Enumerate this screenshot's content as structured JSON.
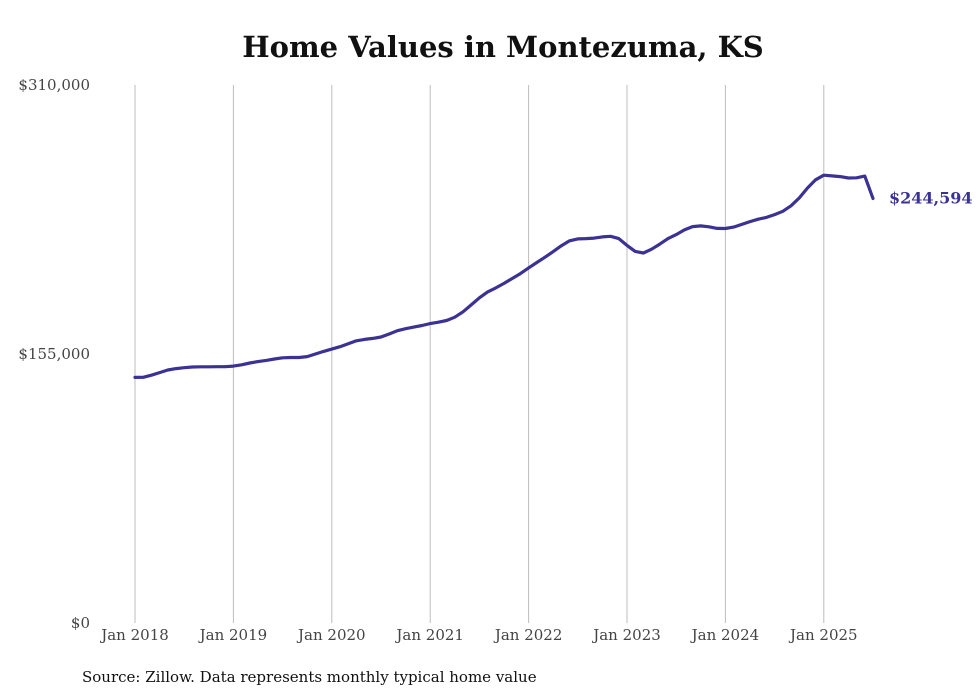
{
  "chart_data": {
    "type": "line",
    "title": "Home Values in Montezuma, KS",
    "xlabel": "",
    "ylabel": "",
    "source": "Source: Zillow. Data represents monthly typical home value",
    "ylim": [
      0,
      310000
    ],
    "y_ticks": [
      {
        "value": 0,
        "label": "$0"
      },
      {
        "value": 155000,
        "label": "$155,000"
      },
      {
        "value": 310000,
        "label": "$310,000"
      }
    ],
    "x_ticks": [
      {
        "value": 2018,
        "label": "Jan 2018"
      },
      {
        "value": 2019,
        "label": "Jan 2019"
      },
      {
        "value": 2020,
        "label": "Jan 2020"
      },
      {
        "value": 2021,
        "label": "Jan 2021"
      },
      {
        "value": 2022,
        "label": "Jan 2022"
      },
      {
        "value": 2023,
        "label": "Jan 2023"
      },
      {
        "value": 2024,
        "label": "Jan 2024"
      },
      {
        "value": 2025,
        "label": "Jan 2025"
      }
    ],
    "xlim": [
      2018,
      2025.5
    ],
    "grid": "vertical",
    "line_color": "#3b3294",
    "end_label": "$244,594",
    "series": [
      {
        "x": [
          2018.0,
          2018.083,
          2018.167,
          2018.25,
          2018.333,
          2018.417,
          2018.5,
          2018.583,
          2018.667,
          2018.75,
          2018.833,
          2018.917,
          2019.0,
          2019.083,
          2019.167,
          2019.25,
          2019.333,
          2019.417,
          2019.5,
          2019.583,
          2019.667,
          2019.75,
          2019.833,
          2019.917,
          2020.0,
          2020.083,
          2020.167,
          2020.25,
          2020.333,
          2020.417,
          2020.5,
          2020.583,
          2020.667,
          2020.75,
          2020.833,
          2020.917,
          2021.0,
          2021.083,
          2021.167,
          2021.25,
          2021.333,
          2021.417,
          2021.5,
          2021.583,
          2021.667,
          2021.75,
          2021.833,
          2021.917,
          2022.0,
          2022.083,
          2022.167,
          2022.25,
          2022.333,
          2022.417,
          2022.5,
          2022.583,
          2022.667,
          2022.75,
          2022.833,
          2022.917,
          2023.0,
          2023.083,
          2023.167,
          2023.25,
          2023.333,
          2023.417,
          2023.5,
          2023.583,
          2023.667,
          2023.75,
          2023.833,
          2023.917,
          2024.0,
          2024.083,
          2024.167,
          2024.25,
          2024.333,
          2024.417,
          2024.5,
          2024.583,
          2024.667,
          2024.75,
          2024.833,
          2024.917,
          2025.0,
          2025.083,
          2025.167,
          2025.25,
          2025.333,
          2025.417,
          2025.5
        ],
        "values": [
          141500,
          141600,
          142800,
          144300,
          145800,
          146600,
          147100,
          147500,
          147600,
          147600,
          147700,
          147700,
          148000,
          148800,
          149800,
          150600,
          151300,
          152100,
          152800,
          153000,
          153000,
          153500,
          155000,
          156500,
          157800,
          159200,
          160900,
          162600,
          163400,
          164000,
          164800,
          166500,
          168400,
          169600,
          170500,
          171400,
          172500,
          173300,
          174300,
          176200,
          179300,
          183300,
          187400,
          190800,
          193100,
          195700,
          198500,
          201300,
          204600,
          207700,
          210800,
          214000,
          217400,
          220200,
          221300,
          221500,
          221800,
          222500,
          222800,
          221500,
          217600,
          214100,
          213200,
          215400,
          218300,
          221500,
          223800,
          226500,
          228400,
          228800,
          228300,
          227400,
          227300,
          228100,
          229700,
          231300,
          232700,
          233700,
          235300,
          237200,
          240400,
          244900,
          250600,
          255400,
          258000,
          257600,
          257200,
          256400,
          256500,
          257500,
          244594
        ]
      }
    ]
  }
}
